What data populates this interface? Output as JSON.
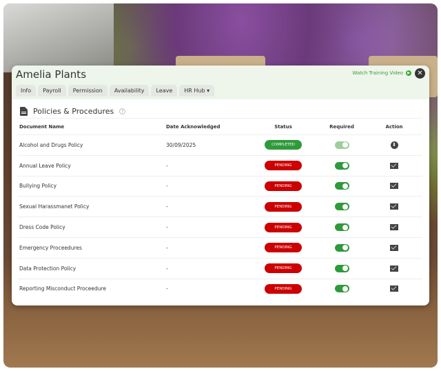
{
  "header": {
    "title": "Amelia Plants",
    "watch_label": "Watch Training Video",
    "close_icon": "close-icon"
  },
  "tabs": [
    {
      "label": "Info"
    },
    {
      "label": "Payroll"
    },
    {
      "label": "Permission"
    },
    {
      "label": "Availability"
    },
    {
      "label": "Leave"
    },
    {
      "label": "HR Hub ▾"
    }
  ],
  "section": {
    "title": "Policies & Procedures",
    "help": "?"
  },
  "columns": [
    "Document Name",
    "Date Acknowledged",
    "Status",
    "Required",
    "Action"
  ],
  "colors": {
    "completed": "#2e9a3a",
    "pending": "#cc0000",
    "toggle_on": "#2e9a3a"
  },
  "rows": [
    {
      "name": "Alcohol and Drugs Policy",
      "date": "30/09/2025",
      "status": "COMPLETED",
      "required": true,
      "action": "download-icon"
    },
    {
      "name": "Annual Leave Policy",
      "date": "-",
      "status": "PENDING",
      "required": true,
      "action": "email-icon"
    },
    {
      "name": "Bullying Policy",
      "date": "-",
      "status": "PENDING",
      "required": true,
      "action": "email-icon"
    },
    {
      "name": "Sexual Harassmanet Policy",
      "date": "-",
      "status": "PENDING",
      "required": true,
      "action": "email-icon"
    },
    {
      "name": "Dress Code Policy",
      "date": "-",
      "status": "PENDING",
      "required": true,
      "action": "email-icon"
    },
    {
      "name": "Emergency Proceedures",
      "date": "-",
      "status": "PENDING",
      "required": true,
      "action": "email-icon"
    },
    {
      "name": "Data Protection Policy",
      "date": "-",
      "status": "PENDING",
      "required": true,
      "action": "email-icon"
    },
    {
      "name": "Reporting Misconduct Proceedure",
      "date": "-",
      "status": "PENDING",
      "required": true,
      "action": "email-icon"
    }
  ]
}
